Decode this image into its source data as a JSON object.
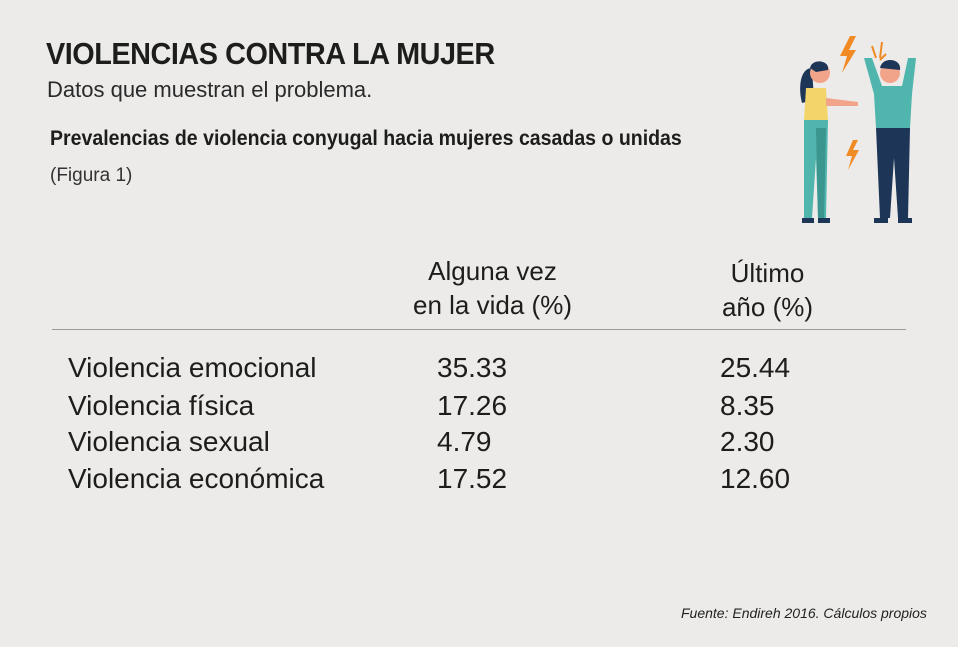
{
  "header": {
    "title": "VIOLENCIAS CONTRA LA MUJER",
    "subtitle": "Datos que muestran el problema."
  },
  "chart_data": {
    "type": "table",
    "title": "Prevalencias de violencia conyugal hacia mujeres casadas o unidas",
    "figure_label": "(Figura 1)",
    "columns": [
      "Alguna vez en la vida (%)",
      "Último año (%)"
    ],
    "column_lines": [
      [
        "Alguna vez",
        "en la vida (%)"
      ],
      [
        "Último",
        "año (%)"
      ]
    ],
    "rows": [
      {
        "label": "Violencia emocional",
        "values": [
          "35.33",
          "25.44"
        ]
      },
      {
        "label": "Violencia física",
        "values": [
          "17.26",
          "8.35"
        ]
      },
      {
        "label": "Violencia sexual",
        "values": [
          "4.79",
          "2.30"
        ]
      },
      {
        "label": "Violencia económica",
        "values": [
          "17.52",
          "12.60"
        ]
      }
    ]
  },
  "footer": {
    "source": "Fuente: Endireh 2016. Cálculos propios"
  },
  "colors": {
    "background": "#ecebea",
    "teal": "#4fb5ad",
    "navy": "#1d3557",
    "orange": "#f08a24",
    "yellow": "#f3d46b"
  }
}
